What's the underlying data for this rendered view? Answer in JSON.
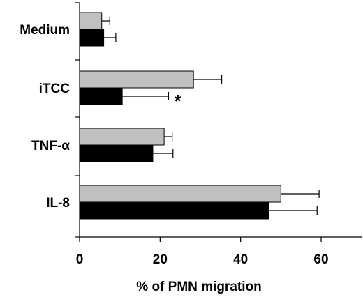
{
  "chart_data": {
    "type": "bar",
    "orientation": "horizontal",
    "categories": [
      "Medium",
      "iTCC",
      "TNF-α",
      "IL-8"
    ],
    "series": [
      {
        "color": "#c0c0c0",
        "values": [
          5.5,
          28.3,
          21.0,
          50.0
        ],
        "errors": [
          2.0,
          7.0,
          2.0,
          9.5
        ]
      },
      {
        "color": "#000000",
        "values": [
          6.0,
          10.6,
          18.2,
          47.0
        ],
        "errors": [
          3.0,
          11.5,
          5.0,
          12.0
        ]
      }
    ],
    "annotations": [
      {
        "category": "iTCC",
        "series_index": 1,
        "text": "*"
      }
    ],
    "xlabel": "% of PMN migration",
    "xticks": [
      0,
      20,
      40,
      60
    ],
    "xlim": [
      0,
      72
    ],
    "grid": false,
    "legend": "none"
  }
}
